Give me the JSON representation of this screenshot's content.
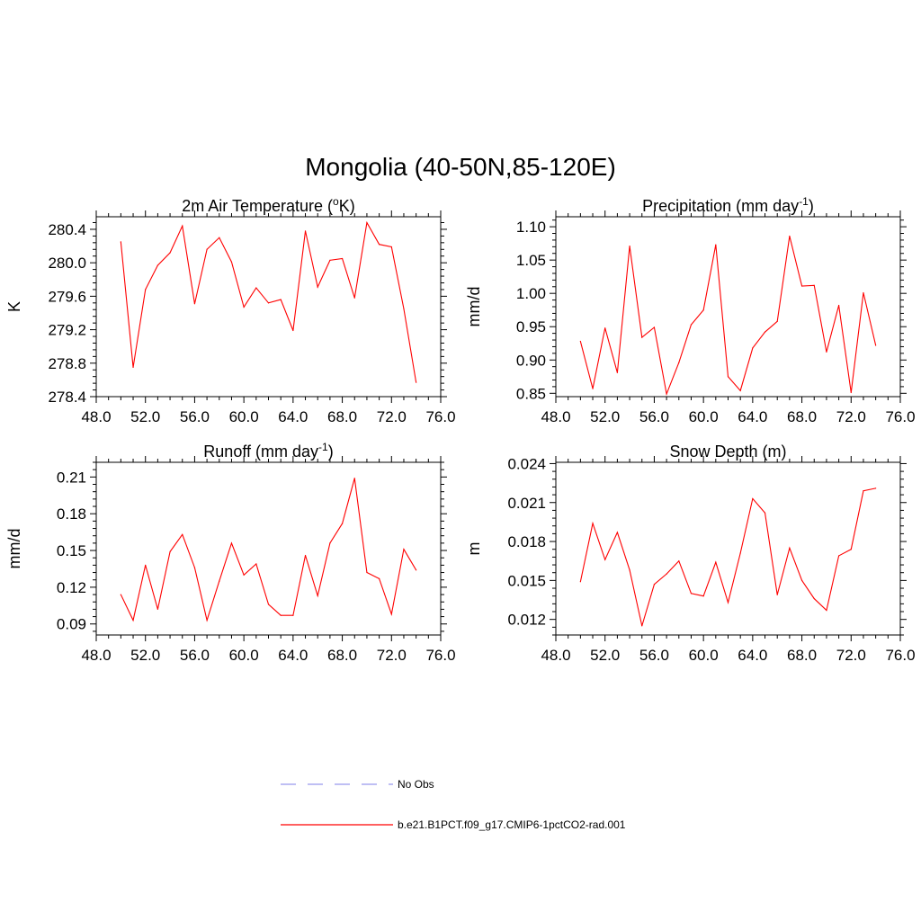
{
  "title": "Mongolia (40-50N,85-120E)",
  "colors": {
    "series": "#ff0000",
    "obs": "#9999ee",
    "axis": "#000000"
  },
  "legend": [
    {
      "label": "No Obs",
      "color": "#9999ee",
      "dash": true
    },
    {
      "label": "b.e21.B1PCT.f09_g17.CMIP6-1pctCO2-rad.001",
      "color": "#ff0000",
      "dash": false
    }
  ],
  "chart_data": [
    {
      "type": "line",
      "title_main": "2m Air Temperature (",
      "title_sup1": "o",
      "title_mid": "K)",
      "title_sup2": "",
      "title_end": "",
      "ylabel": "K",
      "xlim": [
        48,
        76
      ],
      "xticks": [
        "48.0",
        "52.0",
        "56.0",
        "60.0",
        "64.0",
        "68.0",
        "72.0",
        "76.0"
      ],
      "ylim": [
        278.4,
        280.55
      ],
      "yticks": [
        278.4,
        278.8,
        279.2,
        279.6,
        280.0,
        280.4
      ],
      "yticklabels": [
        "278.4",
        "278.8",
        "279.2",
        "279.6",
        "280.0",
        "280.4"
      ],
      "series": [
        {
          "name": "b.e21.B1PCT.f09_g17.CMIP6-1pctCO2-rad.001",
          "x": [
            50,
            51,
            52,
            53,
            54,
            55,
            56,
            57,
            58,
            59,
            60,
            61,
            62,
            63,
            64,
            65,
            66,
            67,
            68,
            69,
            70,
            71,
            72,
            73,
            74
          ],
          "y": [
            280.25,
            278.75,
            279.68,
            279.97,
            280.12,
            280.44,
            279.51,
            280.16,
            280.3,
            280.01,
            279.47,
            279.7,
            279.52,
            279.56,
            279.19,
            280.38,
            279.71,
            280.03,
            280.05,
            279.58,
            280.48,
            280.22,
            280.19,
            279.45,
            278.57
          ]
        }
      ]
    },
    {
      "type": "line",
      "title_main": "Precipitation (mm day",
      "title_sup1": "",
      "title_mid": "",
      "title_sup2": "-1",
      "title_end": ")",
      "ylabel": "mm/d",
      "xlim": [
        48,
        76
      ],
      "xticks": [
        "48.0",
        "52.0",
        "56.0",
        "60.0",
        "64.0",
        "68.0",
        "72.0",
        "76.0"
      ],
      "ylim": [
        0.845,
        1.115
      ],
      "yticks": [
        0.85,
        0.9,
        0.95,
        1.0,
        1.05,
        1.1
      ],
      "yticklabels": [
        "0.85",
        "0.90",
        "0.95",
        "1.00",
        "1.05",
        "1.10"
      ],
      "series": [
        {
          "name": "b.e21.B1PCT.f09_g17.CMIP6-1pctCO2-rad.001",
          "x": [
            50,
            51,
            52,
            53,
            54,
            55,
            56,
            57,
            58,
            59,
            60,
            61,
            62,
            63,
            64,
            65,
            66,
            67,
            68,
            69,
            70,
            71,
            72,
            73,
            74
          ],
          "y": [
            0.928,
            0.857,
            0.948,
            0.881,
            1.071,
            0.934,
            0.949,
            0.849,
            0.896,
            0.953,
            0.975,
            1.073,
            0.875,
            0.854,
            0.918,
            0.942,
            0.958,
            1.086,
            1.011,
            1.012,
            0.912,
            0.982,
            0.851,
            1.001,
            0.922
          ]
        }
      ]
    },
    {
      "type": "line",
      "title_main": "Runoff (mm day",
      "title_sup1": "",
      "title_mid": "",
      "title_sup2": "-1",
      "title_end": ")",
      "ylabel": "mm/d",
      "xlim": [
        48,
        76
      ],
      "xticks": [
        "48.0",
        "52.0",
        "56.0",
        "60.0",
        "64.0",
        "68.0",
        "72.0",
        "76.0"
      ],
      "ylim": [
        0.081,
        0.222
      ],
      "yticks": [
        0.09,
        0.12,
        0.15,
        0.18,
        0.21
      ],
      "yticklabels": [
        "0.09",
        "0.12",
        "0.15",
        "0.18",
        "0.21"
      ],
      "series": [
        {
          "name": "b.e21.B1PCT.f09_g17.CMIP6-1pctCO2-rad.001",
          "x": [
            50,
            51,
            52,
            53,
            54,
            55,
            56,
            57,
            58,
            59,
            60,
            61,
            62,
            63,
            64,
            65,
            66,
            67,
            68,
            69,
            70,
            71,
            72,
            73,
            74
          ],
          "y": [
            0.114,
            0.093,
            0.138,
            0.102,
            0.149,
            0.163,
            0.136,
            0.093,
            0.125,
            0.156,
            0.13,
            0.139,
            0.106,
            0.097,
            0.097,
            0.146,
            0.113,
            0.156,
            0.172,
            0.209,
            0.132,
            0.127,
            0.098,
            0.151,
            0.134
          ]
        }
      ]
    },
    {
      "type": "line",
      "title_main": "Snow Depth (m)",
      "title_sup1": "",
      "title_mid": "",
      "title_sup2": "",
      "title_end": "",
      "ylabel": "m",
      "xlim": [
        48,
        76
      ],
      "xticks": [
        "48.0",
        "52.0",
        "56.0",
        "60.0",
        "64.0",
        "68.0",
        "72.0",
        "76.0"
      ],
      "ylim": [
        0.0108,
        0.0241
      ],
      "yticks": [
        0.012,
        0.015,
        0.018,
        0.021,
        0.024
      ],
      "yticklabels": [
        "0.012",
        "0.015",
        "0.018",
        "0.021",
        "0.024"
      ],
      "series": [
        {
          "name": "b.e21.B1PCT.f09_g17.CMIP6-1pctCO2-rad.001",
          "x": [
            50,
            51,
            52,
            53,
            54,
            55,
            56,
            57,
            58,
            59,
            60,
            61,
            62,
            63,
            64,
            65,
            66,
            67,
            68,
            69,
            70,
            71,
            72,
            73,
            74
          ],
          "y": [
            0.0149,
            0.0194,
            0.0166,
            0.0187,
            0.0158,
            0.0115,
            0.0147,
            0.0155,
            0.0165,
            0.014,
            0.0138,
            0.0164,
            0.0133,
            0.0171,
            0.0213,
            0.0202,
            0.0139,
            0.0175,
            0.015,
            0.0136,
            0.0127,
            0.0169,
            0.0174,
            0.0219,
            0.0221
          ]
        }
      ]
    }
  ]
}
